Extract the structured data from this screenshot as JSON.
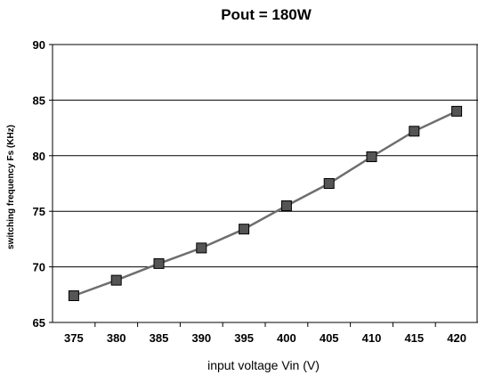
{
  "chart_data": {
    "type": "line",
    "title": "Pout = 180W",
    "xlabel": "input voltage Vin (V)",
    "ylabel": "switching frequency Fs (KHz)",
    "x": [
      375,
      380,
      385,
      390,
      395,
      400,
      405,
      410,
      415,
      420
    ],
    "series": [
      {
        "values": [
          67.4,
          68.8,
          70.3,
          71.7,
          73.4,
          75.5,
          77.5,
          79.9,
          82.2,
          84.0
        ]
      }
    ],
    "ylim": [
      65,
      90
    ],
    "yticks": [
      65,
      70,
      75,
      80,
      85,
      90
    ],
    "grid": "horizontal",
    "legend": "none",
    "colors": {
      "line": "#6e6e6e",
      "marker_fill": "#555555",
      "marker_edge": "#000000",
      "grid": "#000000"
    }
  }
}
